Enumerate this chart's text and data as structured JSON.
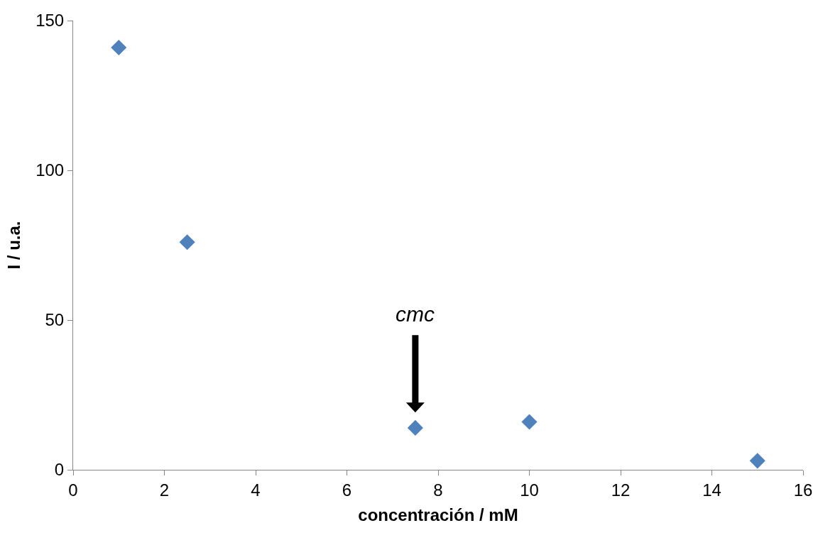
{
  "chart_data": {
    "type": "scatter",
    "xlabel": "concentración / mM",
    "ylabel": "I / u.a.",
    "x": [
      1,
      2.5,
      7.5,
      10,
      15
    ],
    "values": [
      141,
      76,
      14,
      16,
      3
    ],
    "color": "#4f81bd",
    "marker": "diamond",
    "xlim": [
      0,
      16
    ],
    "xticks": [
      0,
      2,
      4,
      6,
      8,
      10,
      12,
      14,
      16
    ],
    "ylim": [
      0,
      150
    ],
    "yticks": [
      0,
      50,
      100,
      150
    ],
    "grid": false,
    "legend": false,
    "annotations": [
      "cmc"
    ]
  }
}
